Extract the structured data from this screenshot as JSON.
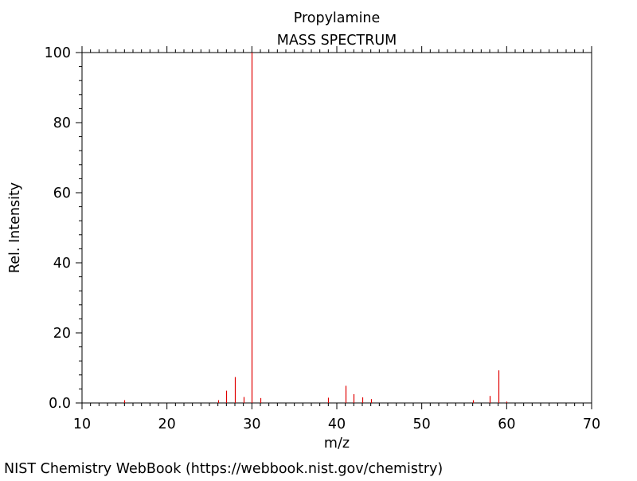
{
  "chart_data": {
    "type": "bar",
    "title": "Propylamine",
    "subtitle": "MASS SPECTRUM",
    "xlabel": "m/z",
    "ylabel": "Rel. Intensity",
    "xlim": [
      10,
      70
    ],
    "ylim": [
      0,
      100
    ],
    "xticks": [
      10,
      20,
      30,
      40,
      50,
      60,
      70
    ],
    "xtick_labels": [
      "10",
      "20",
      "30",
      "40",
      "50",
      "60",
      "70"
    ],
    "yticks": [
      0,
      20,
      40,
      60,
      80,
      100
    ],
    "ytick_labels": [
      "0.0",
      "20",
      "40",
      "60",
      "80",
      "100"
    ],
    "grid": false,
    "bar_color": "#e00000",
    "series": [
      {
        "x": [
          15,
          26,
          27,
          28,
          29,
          30,
          31,
          39,
          41,
          42,
          43,
          44,
          56,
          58,
          59,
          60
        ],
        "values": [
          0.8,
          0.8,
          3.5,
          7.4,
          1.7,
          100,
          1.4,
          1.5,
          4.9,
          2.5,
          1.6,
          1.1,
          0.8,
          2.0,
          9.3,
          0.4
        ]
      }
    ]
  },
  "footer": {
    "credit": "NIST Chemistry WebBook (https://webbook.nist.gov/chemistry)"
  }
}
